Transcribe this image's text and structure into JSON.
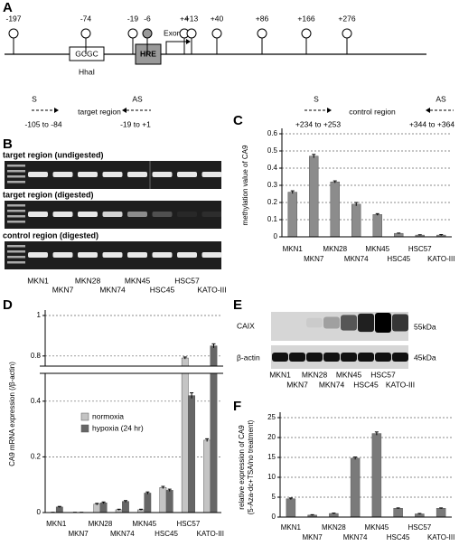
{
  "panel_labels": [
    "A",
    "B",
    "C",
    "D",
    "E",
    "F"
  ],
  "diagram": {
    "sites": [
      "-197",
      "-74",
      "-19",
      "-6",
      "+4",
      "+13",
      "+40",
      "+86",
      "+166",
      "+276"
    ],
    "gcgc": "GCGC",
    "hhai": "HhaI",
    "hre": "HRE",
    "exon": "Exon 1",
    "primers": [
      {
        "strand": "S",
        "range": "-105 to -84"
      },
      {
        "strand": "AS",
        "range": "-19 to +1"
      },
      {
        "strand": "S",
        "range": "+234 to +253"
      },
      {
        "strand": "AS",
        "range": "+344 to +364"
      }
    ],
    "target_label": "target region",
    "control_label": "control region"
  },
  "gel": {
    "rows": [
      "target region (undigested)",
      "target region (digested)",
      "control region (digested)"
    ],
    "lanes": [
      "MKN1",
      "MKN7",
      "MKN28",
      "MKN74",
      "MKN45",
      "HSC45",
      "HSC57",
      "KATO-III"
    ]
  },
  "western": {
    "rows": [
      "CAIX",
      "β-actin"
    ],
    "sizes": [
      "55kDa",
      "45kDa"
    ],
    "lanes": [
      "MKN1",
      "MKN7",
      "MKN28",
      "MKN74",
      "MKN45",
      "HSC45",
      "HSC57",
      "KATO-III"
    ]
  },
  "chart_data": [
    {
      "type": "bar",
      "ylabel": "methylation value of CA9",
      "categories": [
        "MKN1",
        "MKN7",
        "MKN28",
        "MKN74",
        "MKN45",
        "HSC45",
        "HSC57",
        "KATO-III"
      ],
      "values": [
        0.26,
        0.47,
        0.32,
        0.19,
        0.13,
        0.02,
        0.01,
        0.01
      ],
      "errors": [
        0.008,
        0.01,
        0.006,
        0.01,
        0.005,
        0.002,
        0.002,
        0.003
      ],
      "color": "#8c8c8c",
      "ylim": [
        0,
        0.6
      ],
      "yticks": [
        0,
        0.1,
        0.2,
        0.3,
        0.4,
        0.5,
        0.6
      ],
      "grid": true
    },
    {
      "type": "bar",
      "ylabel": "CA9 mRNA expression (/β-actin)",
      "categories": [
        "MKN1",
        "MKN7",
        "MKN28",
        "MKN74",
        "MKN45",
        "HSC45",
        "HSC57",
        "KATO-III"
      ],
      "series": [
        {
          "name": "normoxia",
          "color": "#c4c4c4",
          "values": [
            0.0,
            0.0,
            0.03,
            0.01,
            0.01,
            0.09,
            0.79,
            0.26
          ],
          "errors": [
            0.001,
            0.001,
            0.003,
            0.002,
            0.002,
            0.004,
            0.005,
            0.005
          ]
        },
        {
          "name": "hypoxia (24 hr)",
          "color": "#666666",
          "values": [
            0.02,
            0.0,
            0.035,
            0.04,
            0.07,
            0.08,
            0.42,
            0.85
          ],
          "errors": [
            0.002,
            0.001,
            0.003,
            0.003,
            0.004,
            0.004,
            0.01,
            0.01
          ]
        }
      ],
      "ylim": [
        0,
        1
      ],
      "axis_break": [
        0.5,
        0.75
      ],
      "yticks": [
        0,
        0.2,
        0.4,
        0.8,
        1
      ],
      "grid": true,
      "legend": "left"
    },
    {
      "type": "bar",
      "ylabel": [
        "relative expression of CA9",
        "(5-Aza-dc+TSA/no treatment)"
      ],
      "categories": [
        "MKN1",
        "MKN7",
        "MKN28",
        "MKN74",
        "MKN45",
        "HSC45",
        "HSC57",
        "KATO-III"
      ],
      "values": [
        4.6,
        0.5,
        0.9,
        14.8,
        21,
        2.2,
        0.8,
        2.2
      ],
      "errors": [
        0.2,
        0.1,
        0.1,
        0.3,
        0.4,
        0.1,
        0.1,
        0.1
      ],
      "color": "#7a7a7a",
      "ylim": [
        0,
        25
      ],
      "yticks": [
        0,
        5,
        10,
        15,
        20,
        25
      ],
      "grid": true
    }
  ]
}
